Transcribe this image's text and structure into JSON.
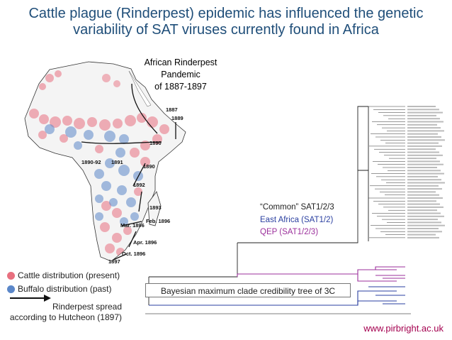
{
  "title": {
    "line1": "Cattle plague (Rinderpest) epidemic has influenced the genetic",
    "line2": "variability of SAT viruses currently found in Africa"
  },
  "pandemic": {
    "line1": "African Rinderpest",
    "line2": "Pandemic",
    "line3": "of 1887-1897"
  },
  "map_years": [
    "1887",
    "1889",
    "1890",
    "1890-92",
    "1891",
    "1890",
    "1892",
    "1893",
    "Feb. 1896",
    "Mar. 1896",
    "Apr. 1896",
    "Oct. 1896",
    "1897"
  ],
  "legend": {
    "cattle": "Cattle distribution (present)",
    "buffalo": "Buffalo distribution (past)",
    "spread_line1": "Rinderpest spread",
    "spread_line2": "according to Hutcheon (1897)"
  },
  "clades": {
    "common": "“Common” SAT1/2/3",
    "east_africa": "East Africa (SAT1/2)",
    "qep": "QEP (SAT1/2/3)"
  },
  "tree_caption": "Bayesian maximum clade credibility tree of 3C",
  "url": "www.pirbright.ac.uk",
  "colors": {
    "title": "#1f4e79",
    "cattle": "#e8707f",
    "buffalo": "#5b87c9",
    "east_africa": "#2a3fa0",
    "qep": "#9b2f9b",
    "url": "#a4004f"
  }
}
